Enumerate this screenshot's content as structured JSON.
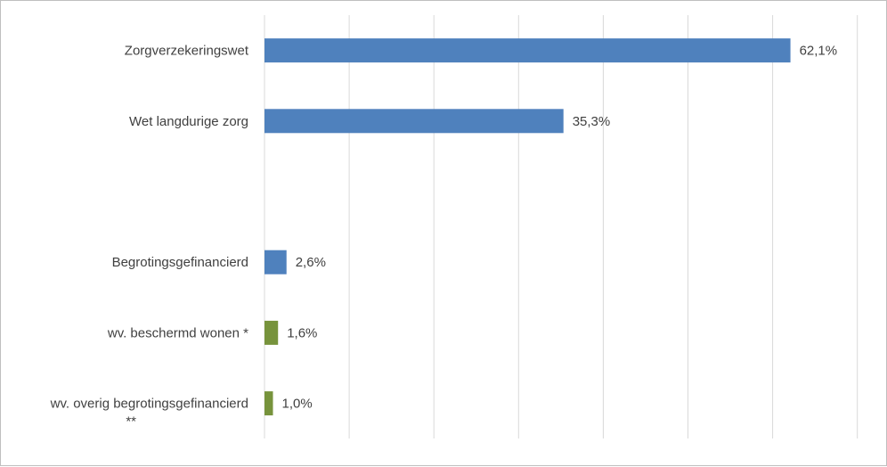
{
  "chart_data": {
    "type": "bar",
    "orientation": "horizontal",
    "title": "",
    "xlabel": "",
    "ylabel": "",
    "xlim": [
      0,
      70
    ],
    "grid": true,
    "legend": "none",
    "categories": [
      [
        "Zorgverzekeringswet"
      ],
      [
        "Wet langdurige zorg"
      ],
      [
        ""
      ],
      [
        "Begrotingsgefinancierd"
      ],
      [
        "wv. beschermd wonen *"
      ],
      [
        "wv. overig begrotingsgefinancierd",
        "**"
      ]
    ],
    "values": [
      62.1,
      35.3,
      null,
      2.6,
      1.6,
      1.0
    ],
    "value_labels": [
      "62,1%",
      "35,3%",
      "",
      "2,6%",
      "1,6%",
      "1,0%"
    ],
    "bar_colors": [
      "#4f81bd",
      "#4f81bd",
      null,
      "#4f81bd",
      "#77933c",
      "#77933c"
    ],
    "gridline_color": "#d9d9d9"
  }
}
